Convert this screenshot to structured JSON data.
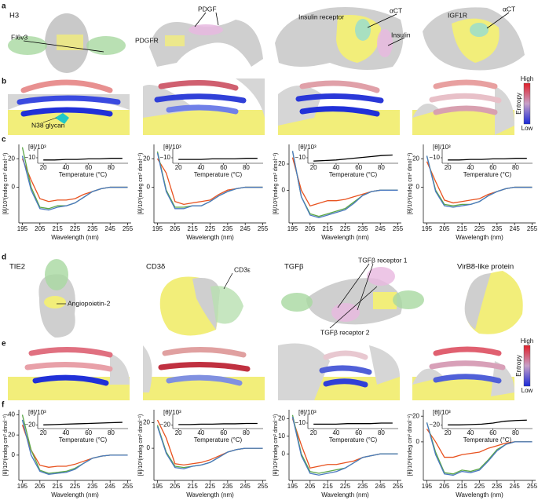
{
  "panel_labels": [
    "a",
    "b",
    "c",
    "d",
    "e",
    "f"
  ],
  "annotations": [
    "H3",
    "FI6v3",
    "PDGF",
    "PDGFR",
    "Insulin receptor",
    "αCT",
    "Insulin",
    "IGF1R",
    "αCT",
    "N38 glycan",
    "TIE2",
    "Angiopoietin-2",
    "CD3δ",
    "CD3ε",
    "TGFβ",
    "TGFβ receptor 1",
    "TGFβ receptor 2",
    "VirB8-like protein"
  ],
  "colorbars": [
    {
      "high": "High",
      "low": "Low",
      "title": "Entropy"
    },
    {
      "high": "High",
      "low": "Low",
      "title": "Entropy"
    }
  ],
  "chart_data": [
    {
      "type": "line",
      "xlabel": "Wavelength (nm)",
      "ylabel": "[θ]/10³(mdeg cm² dmol⁻¹)",
      "x": [
        195,
        200,
        205,
        210,
        215,
        220,
        225,
        230,
        235,
        240,
        245,
        250,
        255
      ],
      "xlim": [
        193,
        257
      ],
      "xticks": [
        195,
        205,
        215,
        225,
        235,
        245,
        255
      ],
      "ylim": [
        -25,
        30
      ],
      "yticks": [
        0,
        20
      ],
      "series": [
        {
          "color": "#e8521f",
          "values": [
            20,
            5,
            -8,
            -10,
            -9,
            -9,
            -8,
            -5,
            -3,
            -1,
            0,
            0,
            0
          ]
        },
        {
          "color": "#5aa646",
          "values": [
            28,
            0,
            -14,
            -15,
            -13,
            -13,
            -11,
            -7,
            -3,
            -1,
            0,
            0,
            0
          ]
        },
        {
          "color": "#4a78c0",
          "values": [
            22,
            -2,
            -15,
            -16,
            -14,
            -13,
            -11,
            -7,
            -3,
            -1,
            0,
            0,
            0
          ]
        }
      ],
      "inset": {
        "type": "line",
        "ylabel": "[θ]/10³",
        "xlabel": "Temperature (°C)",
        "x": [
          20,
          30,
          40,
          50,
          60,
          70,
          80,
          90
        ],
        "values": [
          -14,
          -14,
          -13,
          -13,
          -12,
          -12,
          -11,
          -11
        ],
        "xlim": [
          15,
          95
        ],
        "ylim": [
          -20,
          0
        ],
        "xticks": [
          20,
          40,
          60,
          80
        ],
        "yticks": [
          {
            "value": -10,
            "label": "−10"
          }
        ],
        "color": "#000"
      }
    },
    {
      "type": "line",
      "xlabel": "Wavelength (nm)",
      "ylabel": "[θ]/10³(mdeg cm² dmol⁻¹)",
      "x": [
        195,
        200,
        205,
        210,
        215,
        220,
        225,
        230,
        235,
        240,
        245,
        250,
        255
      ],
      "xlim": [
        193,
        257
      ],
      "xticks": [
        195,
        205,
        215,
        225,
        235,
        245,
        255
      ],
      "ylim": [
        -25,
        30
      ],
      "yticks": [
        0,
        20
      ],
      "series": [
        {
          "color": "#e8521f",
          "values": [
            20,
            10,
            -10,
            -12,
            -11,
            -10,
            -9,
            -5,
            -2,
            -1,
            0,
            0,
            0
          ]
        },
        {
          "color": "#5aa646",
          "values": [
            25,
            -2,
            -14,
            -14,
            -13,
            -13,
            -10,
            -6,
            -3,
            -1,
            0,
            0,
            0
          ]
        },
        {
          "color": "#4a78c0",
          "values": [
            24,
            -3,
            -15,
            -15,
            -13,
            -13,
            -10,
            -6,
            -3,
            -1,
            0,
            0,
            0
          ]
        }
      ],
      "inset": {
        "type": "line",
        "ylabel": "[θ]/10³",
        "xlabel": "Temperature (°C)",
        "x": [
          20,
          30,
          40,
          50,
          60,
          70,
          80,
          90
        ],
        "values": [
          -13,
          -13,
          -13,
          -12,
          -12,
          -12,
          -11,
          -11
        ],
        "xlim": [
          15,
          95
        ],
        "ylim": [
          -20,
          0
        ],
        "xticks": [
          20,
          40,
          60,
          80
        ],
        "yticks": [
          {
            "value": -10,
            "label": "−10"
          }
        ],
        "color": "#000"
      }
    },
    {
      "type": "line",
      "xlabel": "Wavelength (nm)",
      "ylabel": "[θ]/10³(mdeg cm² dmol⁻¹)",
      "x": [
        195,
        200,
        205,
        210,
        215,
        220,
        225,
        230,
        235,
        240,
        245,
        250,
        255
      ],
      "xlim": [
        193,
        257
      ],
      "xticks": [
        195,
        205,
        215,
        225,
        235,
        245,
        255
      ],
      "ylim": [
        -25,
        35
      ],
      "yticks": [
        0,
        20
      ],
      "series": [
        {
          "color": "#e8521f",
          "values": [
            25,
            0,
            -12,
            -10,
            -8,
            -8,
            -7,
            -5,
            -3,
            -1,
            0,
            0,
            0
          ]
        },
        {
          "color": "#5aa646",
          "values": [
            30,
            -5,
            -18,
            -20,
            -18,
            -16,
            -14,
            -9,
            -4,
            -1,
            0,
            0,
            0
          ]
        },
        {
          "color": "#4a78c0",
          "values": [
            30,
            -5,
            -19,
            -21,
            -19,
            -17,
            -15,
            -10,
            -4,
            -1,
            0,
            0,
            0
          ]
        }
      ],
      "inset": {
        "type": "line",
        "ylabel": "[θ]/10³",
        "xlabel": "Temperature (°C)",
        "x": [
          20,
          30,
          40,
          50,
          60,
          70,
          80,
          90
        ],
        "values": [
          -16,
          -15,
          -14,
          -12,
          -10,
          -8,
          -6,
          -5
        ],
        "xlim": [
          15,
          95
        ],
        "ylim": [
          -20,
          0
        ],
        "xticks": [
          20,
          40,
          60,
          80
        ],
        "yticks": [
          {
            "value": -10,
            "label": "−10"
          }
        ],
        "color": "#000"
      }
    },
    {
      "type": "line",
      "xlabel": "Wavelength (nm)",
      "ylabel": "[θ]/10³(mdeg cm² dmol⁻¹)",
      "x": [
        195,
        200,
        205,
        210,
        215,
        220,
        225,
        230,
        235,
        240,
        245,
        250,
        255
      ],
      "xlim": [
        193,
        257
      ],
      "xticks": [
        195,
        205,
        215,
        225,
        235,
        245,
        255
      ],
      "ylim": [
        -25,
        30
      ],
      "yticks": [
        0,
        20
      ],
      "series": [
        {
          "color": "#e8521f",
          "values": [
            18,
            4,
            -9,
            -11,
            -10,
            -9,
            -8,
            -5,
            -3,
            -1,
            0,
            0,
            0
          ]
        },
        {
          "color": "#5aa646",
          "values": [
            22,
            -2,
            -12,
            -13,
            -12,
            -12,
            -10,
            -6,
            -3,
            -1,
            0,
            0,
            0
          ]
        },
        {
          "color": "#4a78c0",
          "values": [
            22,
            -3,
            -13,
            -14,
            -13,
            -12,
            -10,
            -6,
            -3,
            -1,
            0,
            0,
            0
          ]
        }
      ],
      "inset": {
        "type": "line",
        "ylabel": "[θ]/10³",
        "xlabel": "Temperature (°C)",
        "x": [
          20,
          30,
          40,
          50,
          60,
          70,
          80,
          90
        ],
        "values": [
          -14,
          -14,
          -13,
          -13,
          -12,
          -12,
          -11,
          -11
        ],
        "xlim": [
          15,
          95
        ],
        "ylim": [
          -20,
          0
        ],
        "xticks": [
          20,
          40,
          60,
          80
        ],
        "yticks": [
          {
            "value": -10,
            "label": "−10"
          }
        ],
        "color": "#000"
      }
    },
    {
      "type": "line",
      "xlabel": "Wavelength (nm)",
      "ylabel": "[θ]/10³(mdeg cm² dmol⁻¹)",
      "x": [
        195,
        200,
        205,
        210,
        215,
        220,
        225,
        230,
        235,
        240,
        245,
        250,
        255
      ],
      "xlim": [
        193,
        257
      ],
      "xticks": [
        195,
        205,
        215,
        225,
        235,
        245,
        255
      ],
      "ylim": [
        -25,
        45
      ],
      "yticks": [
        0,
        20,
        40
      ],
      "series": [
        {
          "color": "#e8521f",
          "values": [
            30,
            5,
            -10,
            -12,
            -11,
            -11,
            -9,
            -6,
            -3,
            -1,
            0,
            0,
            0
          ]
        },
        {
          "color": "#5aa646",
          "values": [
            40,
            5,
            -15,
            -18,
            -17,
            -16,
            -13,
            -8,
            -3,
            -1,
            0,
            0,
            0
          ]
        },
        {
          "color": "#4a78c0",
          "values": [
            35,
            0,
            -16,
            -19,
            -18,
            -17,
            -14,
            -8,
            -3,
            -1,
            0,
            0,
            0
          ]
        }
      ],
      "inset": {
        "type": "line",
        "ylabel": "[θ]/10³",
        "xlabel": "Temperature (°C)",
        "x": [
          20,
          30,
          40,
          50,
          60,
          70,
          80,
          90
        ],
        "values": [
          -20,
          -19,
          -18,
          -17,
          -16,
          -15,
          -14,
          -13
        ],
        "xlim": [
          15,
          95
        ],
        "ylim": [
          -30,
          0
        ],
        "xticks": [
          20,
          40,
          60,
          80
        ],
        "yticks": [
          {
            "value": -20,
            "label": "−20"
          }
        ],
        "color": "#000"
      }
    },
    {
      "type": "line",
      "xlabel": "Wavelength (nm)",
      "ylabel": "[θ]/10³(mdeg cm² dmol⁻¹)",
      "x": [
        195,
        200,
        205,
        210,
        215,
        220,
        225,
        230,
        235,
        240,
        245,
        250,
        255
      ],
      "xlim": [
        193,
        257
      ],
      "xticks": [
        195,
        205,
        215,
        225,
        235,
        245,
        255
      ],
      "ylim": [
        -25,
        30
      ],
      "yticks": [
        0,
        20
      ],
      "series": [
        {
          "color": "#e8521f",
          "values": [
            22,
            8,
            -12,
            -13,
            -12,
            -11,
            -9,
            -6,
            -3,
            -1,
            0,
            0,
            0
          ]
        },
        {
          "color": "#5aa646",
          "values": [
            18,
            -3,
            -14,
            -15,
            -14,
            -13,
            -11,
            -7,
            -3,
            -1,
            0,
            0,
            0
          ]
        },
        {
          "color": "#4a78c0",
          "values": [
            17,
            -4,
            -15,
            -16,
            -14,
            -13,
            -11,
            -7,
            -3,
            -1,
            0,
            0,
            0
          ]
        }
      ],
      "inset": {
        "type": "line",
        "ylabel": "[θ]/10³",
        "xlabel": "Temperature (°C)",
        "x": [
          20,
          30,
          40,
          50,
          60,
          70,
          80,
          90
        ],
        "values": [
          -19,
          -19,
          -18,
          -18,
          -17,
          -17,
          -16,
          -16
        ],
        "xlim": [
          15,
          95
        ],
        "ylim": [
          -30,
          0
        ],
        "xticks": [
          20,
          40,
          60,
          80
        ],
        "yticks": [
          {
            "value": -20,
            "label": "−20"
          }
        ],
        "color": "#000"
      }
    },
    {
      "type": "line",
      "xlabel": "Wavelength (nm)",
      "ylabel": "[θ]/10³(mdeg cm² dmol⁻¹)",
      "x": [
        195,
        200,
        205,
        210,
        215,
        220,
        225,
        230,
        235,
        240,
        245,
        250,
        255
      ],
      "xlim": [
        193,
        257
      ],
      "xticks": [
        195,
        205,
        215,
        225,
        235,
        245,
        255
      ],
      "ylim": [
        -15,
        25
      ],
      "yticks": [
        0,
        10,
        20
      ],
      "series": [
        {
          "color": "#e8521f",
          "values": [
            20,
            5,
            -8,
            -7,
            -6,
            -6,
            -5,
            -4,
            -2,
            -1,
            0,
            0,
            0
          ]
        },
        {
          "color": "#5aa646",
          "values": [
            22,
            0,
            -10,
            -11,
            -10,
            -9,
            -8,
            -5,
            -2,
            -1,
            0,
            0,
            0
          ]
        },
        {
          "color": "#4a78c0",
          "values": [
            21,
            -1,
            -11,
            -12,
            -11,
            -10,
            -8,
            -5,
            -2,
            -1,
            0,
            0,
            0
          ]
        }
      ],
      "inset": {
        "type": "line",
        "ylabel": "[θ]/10³",
        "xlabel": "Temperature (°C)",
        "x": [
          20,
          30,
          40,
          50,
          60,
          70,
          80,
          90
        ],
        "values": [
          -12,
          -12,
          -12,
          -11,
          -11,
          -11,
          -10,
          -10
        ],
        "xlim": [
          15,
          95
        ],
        "ylim": [
          -20,
          0
        ],
        "xticks": [
          20,
          40,
          60,
          80
        ],
        "yticks": [
          {
            "value": -10,
            "label": "−10"
          }
        ],
        "color": "#000"
      }
    },
    {
      "type": "line",
      "xlabel": "Wavelength (nm)",
      "ylabel": "[θ]/10³(mdeg cm² dmol⁻¹)",
      "x": [
        195,
        200,
        205,
        210,
        215,
        220,
        225,
        230,
        235,
        240,
        245,
        250,
        255
      ],
      "xlim": [
        193,
        257
      ],
      "xticks": [
        195,
        205,
        215,
        225,
        235,
        245,
        255
      ],
      "ylim": [
        -30,
        25
      ],
      "yticks": [
        0,
        20
      ],
      "series": [
        {
          "color": "#e8521f",
          "values": [
            10,
            0,
            -12,
            -12,
            -10,
            -9,
            -8,
            -5,
            -3,
            -1,
            0,
            0,
            0
          ]
        },
        {
          "color": "#5aa646",
          "values": [
            15,
            -8,
            -24,
            -25,
            -22,
            -23,
            -21,
            -14,
            -6,
            -2,
            0,
            0,
            0
          ]
        },
        {
          "color": "#4a78c0",
          "values": [
            15,
            -10,
            -25,
            -26,
            -23,
            -24,
            -22,
            -15,
            -7,
            -2,
            0,
            0,
            0
          ]
        }
      ],
      "inset": {
        "type": "line",
        "ylabel": "[θ]/10³",
        "xlabel": "Temperature (°C)",
        "x": [
          20,
          30,
          40,
          50,
          60,
          70,
          80,
          90
        ],
        "values": [
          -20,
          -20,
          -19,
          -18,
          -15,
          -10,
          -8,
          -7
        ],
        "xlim": [
          15,
          95
        ],
        "ylim": [
          -30,
          0
        ],
        "xticks": [
          20,
          40,
          60,
          80
        ],
        "yticks": [
          {
            "value": -20,
            "label": "−20"
          }
        ],
        "color": "#000"
      }
    }
  ]
}
